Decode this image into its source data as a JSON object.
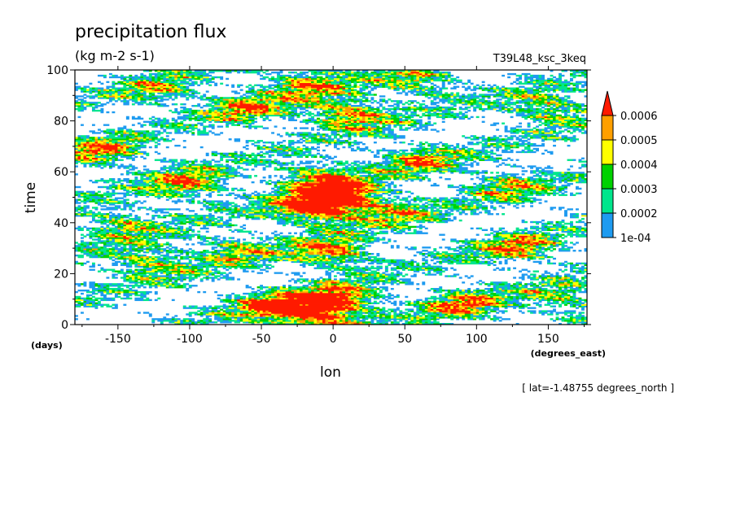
{
  "chart_data": {
    "type": "heatmap",
    "title": "precipitation flux",
    "units": "(kg m-2 s-1)",
    "run_label": "T39L48_ksc_3keq",
    "xlabel": "lon",
    "x_units": "(degrees_east)",
    "ylabel": "time",
    "y_units": "(days)",
    "xlim": [
      -180,
      177
    ],
    "ylim": [
      0,
      100
    ],
    "x_ticks": [
      -150,
      -100,
      -50,
      0,
      50,
      100,
      150
    ],
    "y_ticks": [
      0,
      20,
      40,
      60,
      80,
      100
    ],
    "x_tick_labels": [
      "-150",
      "-100",
      "-50",
      "0",
      "50",
      "100",
      "150"
    ],
    "y_tick_labels": [
      "0",
      "20",
      "40",
      "60",
      "80",
      "100"
    ],
    "slice_note": "[ lat=-1.48755 degrees_north ]",
    "colorbar": {
      "levels": [
        0.0001,
        0.0002,
        0.0003,
        0.0004,
        0.0005,
        0.0006
      ],
      "level_labels": [
        "1e-04",
        "0.0002",
        "0.0003",
        "0.0004",
        "0.0005",
        "0.0006"
      ],
      "colors": [
        "#1e9bf0",
        "#00e68c",
        "#00d200",
        "#ffff00",
        "#ff9f00",
        "#ff1a00"
      ],
      "extend": "max"
    },
    "features": [
      {
        "lon": 5,
        "time": 50,
        "value": 0.0007
      },
      {
        "lon": -15,
        "time": 45,
        "value": 0.00065
      },
      {
        "lon": 10,
        "time": 83,
        "value": 0.00065
      },
      {
        "lon": 5,
        "time": 10,
        "value": 0.00065
      },
      {
        "lon": -10,
        "time": 3,
        "value": 0.0006
      },
      {
        "lon": -40,
        "time": 7,
        "value": 0.0006
      },
      {
        "lon": 0,
        "time": 28,
        "value": 0.0006
      },
      {
        "lon": -10,
        "time": 58,
        "value": 0.00055
      },
      {
        "lon": -100,
        "time": 55,
        "value": 0.00055
      },
      {
        "lon": -160,
        "time": 68,
        "value": 0.0005
      },
      {
        "lon": -130,
        "time": 25,
        "value": 0.0005
      },
      {
        "lon": 130,
        "time": 30,
        "value": 0.0005
      },
      {
        "lon": 150,
        "time": 85,
        "value": 0.0005
      },
      {
        "lon": 90,
        "time": 8,
        "value": 0.0005
      },
      {
        "lon": 60,
        "time": 65,
        "value": 0.00045
      },
      {
        "lon": -60,
        "time": 85,
        "value": 0.00045
      },
      {
        "lon": 120,
        "time": 55,
        "value": 0.0004
      },
      {
        "lon": -150,
        "time": 40,
        "value": 0.00045
      },
      {
        "lon": 40,
        "time": 45,
        "value": 0.0004
      },
      {
        "lon": -70,
        "time": 30,
        "value": 0.0004
      },
      {
        "lon": 160,
        "time": 10,
        "value": 0.0004
      },
      {
        "lon": -120,
        "time": 92,
        "value": 0.0004
      },
      {
        "lon": 60,
        "time": 95,
        "value": 0.00045
      },
      {
        "lon": -20,
        "time": 95,
        "value": 0.0005
      }
    ]
  }
}
